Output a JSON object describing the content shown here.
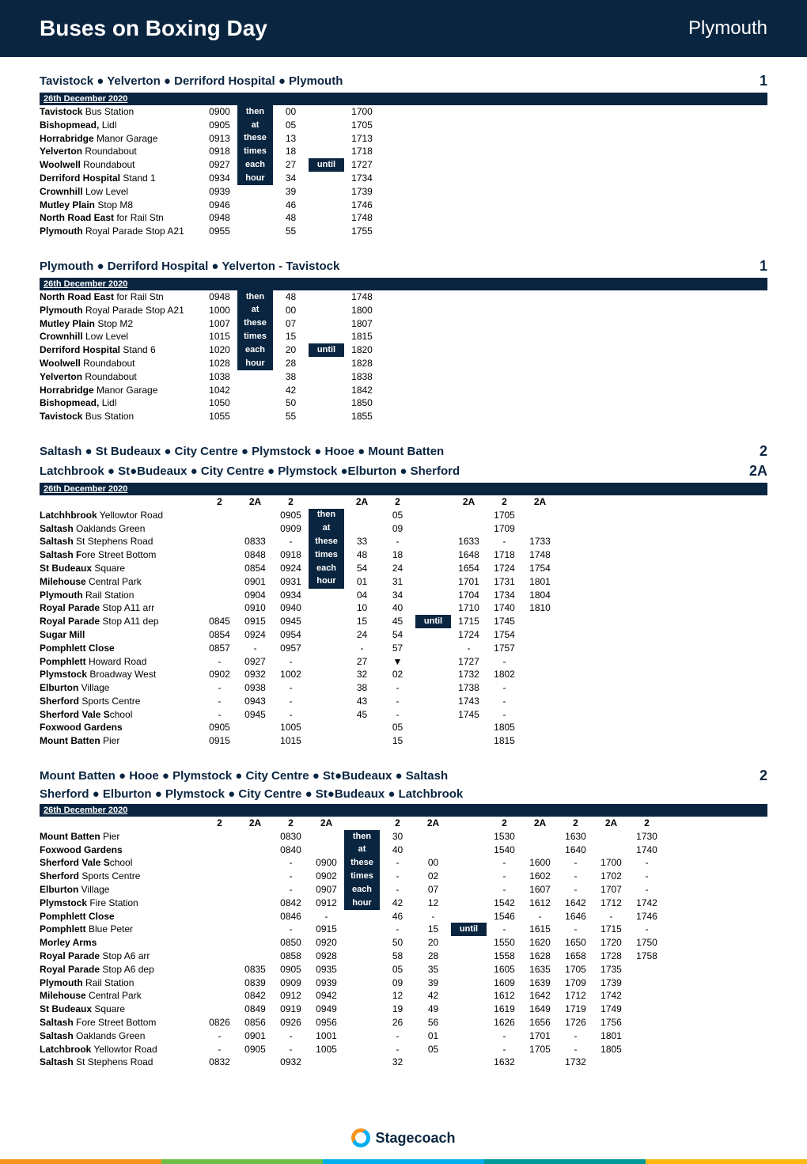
{
  "header": {
    "title": "Buses on Boxing Day",
    "city": "Plymouth"
  },
  "colors": {
    "navy": "#0a2540",
    "white": "#ffffff",
    "orange": "#f7941d",
    "blue": "#00aeef",
    "green": "#6cbe45",
    "teal": "#009999",
    "yellow": "#fdb813"
  },
  "date_label": "26th December 2020",
  "logo_text": "Stagecoach",
  "phrases": {
    "then": "then",
    "at": "at",
    "these": "these",
    "times": "times",
    "each": "each",
    "hour": "hour",
    "until": "until"
  },
  "tables": [
    {
      "routes": [
        {
          "title": "Tavistock ● Yelverton ● Derriford Hospital ● Plymouth",
          "num": "1"
        }
      ],
      "darkcol": 2,
      "untilcol": 4,
      "untilrow": 4,
      "rows": [
        {
          "stop": "<b>Tavistock</b> Bus Station",
          "c": [
            "0900",
            "",
            "00",
            "",
            "1700"
          ]
        },
        {
          "stop": "<b>Bishopmead,</b> Lidl",
          "c": [
            "0905",
            "",
            "05",
            "",
            "1705"
          ]
        },
        {
          "stop": "<b>Horrabridge</b> Manor Garage",
          "c": [
            "0913",
            "",
            "13",
            "",
            "1713"
          ]
        },
        {
          "stop": "<b>Yelverton</b> Roundabout",
          "c": [
            "0918",
            "",
            "18",
            "",
            "1718"
          ]
        },
        {
          "stop": "<b>Woolwell</b> Roundabout",
          "c": [
            "0927",
            "",
            "27",
            "",
            "1727"
          ]
        },
        {
          "stop": "<b>Derriford Hospital</b> Stand 1",
          "c": [
            "0934",
            "",
            "34",
            "",
            "1734"
          ]
        },
        {
          "stop": "<b>Crownhill</b> Low Level",
          "c": [
            "0939",
            "",
            "39",
            "",
            "1739"
          ]
        },
        {
          "stop": "<b>Mutley Plain</b> Stop M8",
          "c": [
            "0946",
            "",
            "46",
            "",
            "1746"
          ]
        },
        {
          "stop": "<b>North Road East</b> for Rail Stn",
          "c": [
            "0948",
            "",
            "48",
            "",
            "1748"
          ]
        },
        {
          "stop": "<b>Plymouth</b> Royal Parade Stop A21",
          "c": [
            "0955",
            "",
            "55",
            "",
            "1755"
          ]
        }
      ]
    },
    {
      "routes": [
        {
          "title": "Plymouth ● Derriford Hospital ● Yelverton - Tavistock",
          "num": "1"
        }
      ],
      "darkcol": 2,
      "untilcol": 4,
      "untilrow": 4,
      "rows": [
        {
          "stop": "<b>North Road East</b> for Rail Stn",
          "c": [
            "0948",
            "",
            "48",
            "",
            "1748"
          ]
        },
        {
          "stop": "<b>Plymouth</b> Royal Parade Stop A21",
          "c": [
            "1000",
            "",
            "00",
            "",
            "1800"
          ]
        },
        {
          "stop": "<b>Mutley Plain</b> Stop M2",
          "c": [
            "1007",
            "",
            "07",
            "",
            "1807"
          ]
        },
        {
          "stop": "<b>Crownhill</b> Low Level",
          "c": [
            "1015",
            "",
            "15",
            "",
            "1815"
          ]
        },
        {
          "stop": "<b>Derriford Hospital</b> Stand 6",
          "c": [
            "1020",
            "",
            "20",
            "",
            "1820"
          ]
        },
        {
          "stop": "<b>Woolwell</b> Roundabout",
          "c": [
            "1028",
            "",
            "28",
            "",
            "1828"
          ]
        },
        {
          "stop": "<b>Yelverton</b> Roundabout",
          "c": [
            "1038",
            "",
            "38",
            "",
            "1838"
          ]
        },
        {
          "stop": "<b>Horrabridge</b> Manor Garage",
          "c": [
            "1042",
            "",
            "42",
            "",
            "1842"
          ]
        },
        {
          "stop": "<b>Bishopmead,</b> Lidl",
          "c": [
            "1050",
            "",
            "50",
            "",
            "1850"
          ]
        },
        {
          "stop": "<b>Tavistock</b> Bus Station",
          "c": [
            "1055",
            "",
            "55",
            "",
            "1855"
          ]
        }
      ]
    },
    {
      "routes": [
        {
          "title": "Saltash ● St Budeaux ● City Centre ● Plymstock ● Hooe ● Mount Batten",
          "num": "2"
        },
        {
          "title": "Latchbrook ● St●Budeaux ● City Centre ● Plymstock ●Elburton ● Sherford",
          "num": "2A"
        }
      ],
      "services": [
        "2",
        "2A",
        "2",
        "",
        "2A",
        "2",
        "",
        "2A",
        "2",
        "2A"
      ],
      "darkcol": 4,
      "untilcol": 7,
      "untilrow": 8,
      "rows": [
        {
          "stop": "<b>Latchhbrook</b> Yellowtor Road",
          "c": [
            "",
            "",
            "0905",
            "",
            "",
            "05",
            "",
            "",
            "1705",
            ""
          ]
        },
        {
          "stop": "<b>Saltash</b> Oaklands Green",
          "c": [
            "",
            "",
            "0909",
            "",
            "",
            "09",
            "",
            "",
            "1709",
            ""
          ]
        },
        {
          "stop": "<b>Saltash</b> St Stephens Road",
          "c": [
            "",
            "0833",
            "-",
            "",
            "33",
            "-",
            "",
            "1633",
            "-",
            "1733"
          ]
        },
        {
          "stop": "<b>Saltash F</b>ore Street Bottom",
          "c": [
            "",
            "0848",
            "0918",
            "",
            "48",
            "18",
            "",
            "1648",
            "1718",
            "1748"
          ]
        },
        {
          "stop": "<b>St Budeaux</b> Square",
          "c": [
            "",
            "0854",
            "0924",
            "",
            "54",
            "24",
            "",
            "1654",
            "1724",
            "1754"
          ]
        },
        {
          "stop": "<b>Milehouse</b> Central Park",
          "c": [
            "",
            "0901",
            "0931",
            "",
            "01",
            "31",
            "",
            "1701",
            "1731",
            "1801"
          ]
        },
        {
          "stop": "<b>Plymouth</b> Rail Station",
          "c": [
            "",
            "0904",
            "0934",
            "",
            "04",
            "34",
            "",
            "1704",
            "1734",
            "1804"
          ]
        },
        {
          "stop": "<b>Royal Parade</b> Stop A11 arr",
          "c": [
            "",
            "0910",
            "0940",
            "",
            "10",
            "40",
            "",
            "1710",
            "1740",
            "1810"
          ]
        },
        {
          "stop": "<b>Royal Parade</b> Stop A11 dep",
          "c": [
            "0845",
            "0915",
            "0945",
            "",
            "15",
            "45",
            "",
            "1715",
            "1745",
            ""
          ]
        },
        {
          "stop": "<b>Sugar Mill</b>",
          "c": [
            "0854",
            "0924",
            "0954",
            "",
            "24",
            "54",
            "",
            "1724",
            "1754",
            ""
          ]
        },
        {
          "stop": "<b>Pomphlett Close</b>",
          "c": [
            "0857",
            "-",
            "0957",
            "",
            "-",
            "57",
            "",
            "-",
            "1757",
            ""
          ]
        },
        {
          "stop": "<b>Pomphlett</b> Howard Road",
          "c": [
            "-",
            "0927",
            "-",
            "",
            "27",
            "▼",
            "",
            "1727",
            "-",
            ""
          ]
        },
        {
          "stop": "<b>Plymstock</b> Broadway West",
          "c": [
            "0902",
            "0932",
            "1002",
            "",
            "32",
            "02",
            "",
            "1732",
            "1802",
            ""
          ]
        },
        {
          "stop": "<b>Elburton</b> Village",
          "c": [
            "-",
            "0938",
            "-",
            "",
            "38",
            "-",
            "",
            "1738",
            "-",
            ""
          ]
        },
        {
          "stop": "<b>Sherford</b> Sports Centre",
          "c": [
            "-",
            "0943",
            "-",
            "",
            "43",
            "-",
            "",
            "1743",
            "-",
            ""
          ]
        },
        {
          "stop": "<b>Sherford Vale S</b>chool",
          "c": [
            "-",
            "0945",
            "-",
            "",
            "45",
            "-",
            "",
            "1745",
            "-",
            ""
          ]
        },
        {
          "stop": "<b>Foxwood Gardens</b>",
          "c": [
            "0905",
            "",
            "1005",
            "",
            "",
            "05",
            "",
            "",
            "1805",
            ""
          ]
        },
        {
          "stop": "<b>Mount Batten</b> Pier",
          "c": [
            "0915",
            "",
            "1015",
            "",
            "",
            "15",
            "",
            "",
            "1815",
            ""
          ]
        }
      ]
    },
    {
      "routes": [
        {
          "title": "Mount Batten ● Hooe ● Plymstock ● City Centre ● St●Budeaux ● Saltash",
          "num": "2"
        },
        {
          "title": "Sherford ● Elburton ● Plymstock ● City Centre ● St●Budeaux ● Latchbrook",
          "num": ""
        }
      ],
      "services": [
        "2",
        "2A",
        "2",
        "2A",
        "",
        "2",
        "2A",
        "",
        "2",
        "2A",
        "2",
        "2A",
        "2"
      ],
      "darkcol": 5,
      "untilcol": 8,
      "untilrow": 7,
      "rows": [
        {
          "stop": "<b>Mount Batten</b> Pier",
          "c": [
            "",
            "",
            "0830",
            "",
            "",
            "30",
            "",
            "",
            "1530",
            "",
            "1630",
            "",
            "1730"
          ]
        },
        {
          "stop": "<b>Foxwood Gardens</b>",
          "c": [
            "",
            "",
            "0840",
            "",
            "",
            "40",
            "",
            "",
            "1540",
            "",
            "1640",
            "",
            "1740"
          ]
        },
        {
          "stop": "<b>Sherford Vale S</b>chool",
          "c": [
            "",
            "",
            "-",
            "0900",
            "",
            "-",
            "00",
            "",
            "-",
            "1600",
            "-",
            "1700",
            "-"
          ]
        },
        {
          "stop": "<b>Sherford</b> Sports Centre",
          "c": [
            "",
            "",
            "-",
            "0902",
            "",
            "-",
            "02",
            "",
            "-",
            "1602",
            "-",
            "1702",
            "-"
          ]
        },
        {
          "stop": "<b>Elburton</b> Village",
          "c": [
            "",
            "",
            "-",
            "0907",
            "",
            "-",
            "07",
            "",
            "-",
            "1607",
            "-",
            "1707",
            "-"
          ]
        },
        {
          "stop": "<b>Plymstock</b> Fire Station",
          "c": [
            "",
            "",
            "0842",
            "0912",
            "",
            "42",
            "12",
            "",
            "1542",
            "1612",
            "1642",
            "1712",
            "1742"
          ]
        },
        {
          "stop": "<b>Pomphlett Close</b>",
          "c": [
            "",
            "",
            "0846",
            "-",
            "",
            "46",
            "-",
            "",
            "1546",
            "-",
            "1646",
            "-",
            "1746"
          ]
        },
        {
          "stop": "<b>Pomphlett</b> Blue Peter",
          "c": [
            "",
            "",
            "-",
            "0915",
            "",
            "-",
            "15",
            "",
            "-",
            "1615",
            "-",
            "1715",
            "-"
          ]
        },
        {
          "stop": "<b>Morley Arms</b>",
          "c": [
            "",
            "",
            "0850",
            "0920",
            "",
            "50",
            "20",
            "",
            "1550",
            "1620",
            "1650",
            "1720",
            "1750"
          ]
        },
        {
          "stop": "<b>Royal Parade</b> Stop A6 arr",
          "c": [
            "",
            "",
            "0858",
            "0928",
            "",
            "58",
            "28",
            "",
            "1558",
            "1628",
            "1658",
            "1728",
            "1758"
          ]
        },
        {
          "stop": "<b>Royal Parade</b> Stop A6 dep",
          "c": [
            "",
            "0835",
            "0905",
            "0935",
            "",
            "05",
            "35",
            "",
            "1605",
            "1635",
            "1705",
            "1735",
            ""
          ]
        },
        {
          "stop": "<b>Plymouth</b> Rail Station",
          "c": [
            "",
            "0839",
            "0909",
            "0939",
            "",
            "09",
            "39",
            "",
            "1609",
            "1639",
            "1709",
            "1739",
            ""
          ]
        },
        {
          "stop": "<b>Milehouse</b> Central Park",
          "c": [
            "",
            "0842",
            "0912",
            "0942",
            "",
            "12",
            "42",
            "",
            "1612",
            "1642",
            "1712",
            "1742",
            ""
          ]
        },
        {
          "stop": "<b>St Budeaux</b> Square",
          "c": [
            "",
            "0849",
            "0919",
            "0949",
            "",
            "19",
            "49",
            "",
            "1619",
            "1649",
            "1719",
            "1749",
            ""
          ]
        },
        {
          "stop": "<b>Saltash</b> Fore Street Bottom",
          "c": [
            "0826",
            "0856",
            "0926",
            "0956",
            "",
            "26",
            "56",
            "",
            "1626",
            "1656",
            "1726",
            "1756",
            ""
          ]
        },
        {
          "stop": "<b>Saltash</b> Oaklands Green",
          "c": [
            "-",
            "0901",
            "-",
            "1001",
            "",
            "-",
            "01",
            "",
            "-",
            "1701",
            "-",
            "1801",
            ""
          ]
        },
        {
          "stop": "<b>Latchbrook</b> Yellowtor Road",
          "c": [
            "-",
            "0905",
            "-",
            "1005",
            "",
            "-",
            "05",
            "",
            "-",
            "1705",
            "-",
            "1805",
            ""
          ]
        },
        {
          "stop": "<b>Saltash</b> St Stephens Road",
          "c": [
            "0832",
            "",
            "0932",
            "",
            "",
            "32",
            "",
            "",
            "1632",
            "",
            "1732",
            "",
            ""
          ]
        }
      ]
    }
  ]
}
